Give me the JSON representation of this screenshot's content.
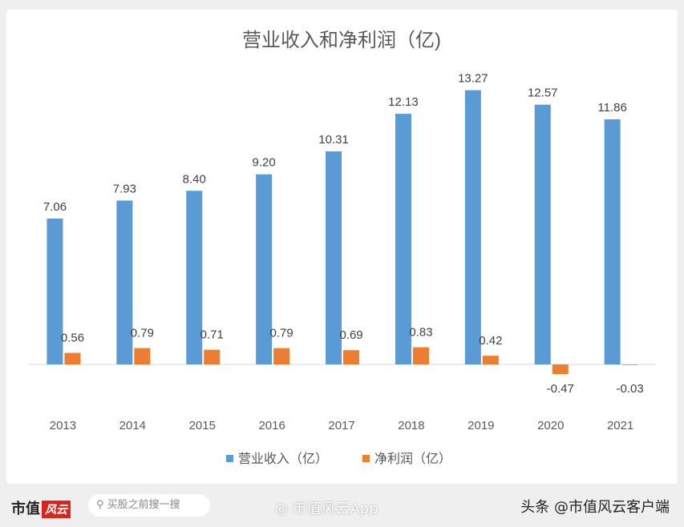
{
  "chart_data": {
    "type": "bar",
    "title": "营业收入和净利润（亿)",
    "categories": [
      "2013",
      "2014",
      "2015",
      "2016",
      "2017",
      "2018",
      "2019",
      "2020",
      "2021"
    ],
    "series": [
      {
        "name": "营业收入（亿）",
        "color": "#5b9bd5",
        "values": [
          7.06,
          7.93,
          8.4,
          9.2,
          10.31,
          12.13,
          13.27,
          12.57,
          11.86
        ]
      },
      {
        "name": "净利润（亿）",
        "color": "#ed7d31",
        "values": [
          0.56,
          0.79,
          0.71,
          0.79,
          0.69,
          0.83,
          0.42,
          -0.47,
          -0.03
        ]
      }
    ],
    "legend": "bottom",
    "grid": false
  },
  "footer": {
    "logo_text": "市值",
    "logo_mark": "风云",
    "search_placeholder": "买股之前搜一搜",
    "weibo_watermark": "市值风云App",
    "toutiao": "头条 @市值风云客户端"
  },
  "watermark": "市值风云"
}
